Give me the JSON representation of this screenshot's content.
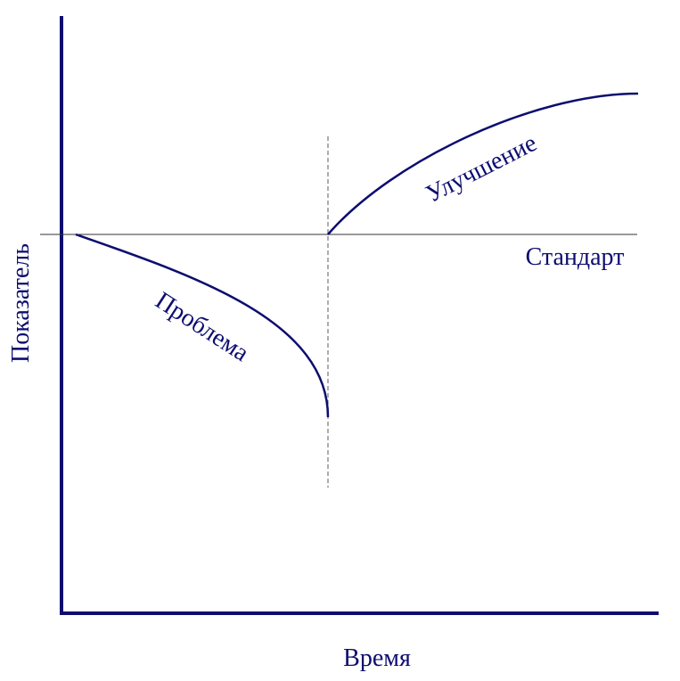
{
  "axes": {
    "y_label": "Показатель",
    "x_label": "Время"
  },
  "curves": {
    "problem": "Проблема",
    "improvement": "Улучшение",
    "standard": "Стандарт"
  }
}
